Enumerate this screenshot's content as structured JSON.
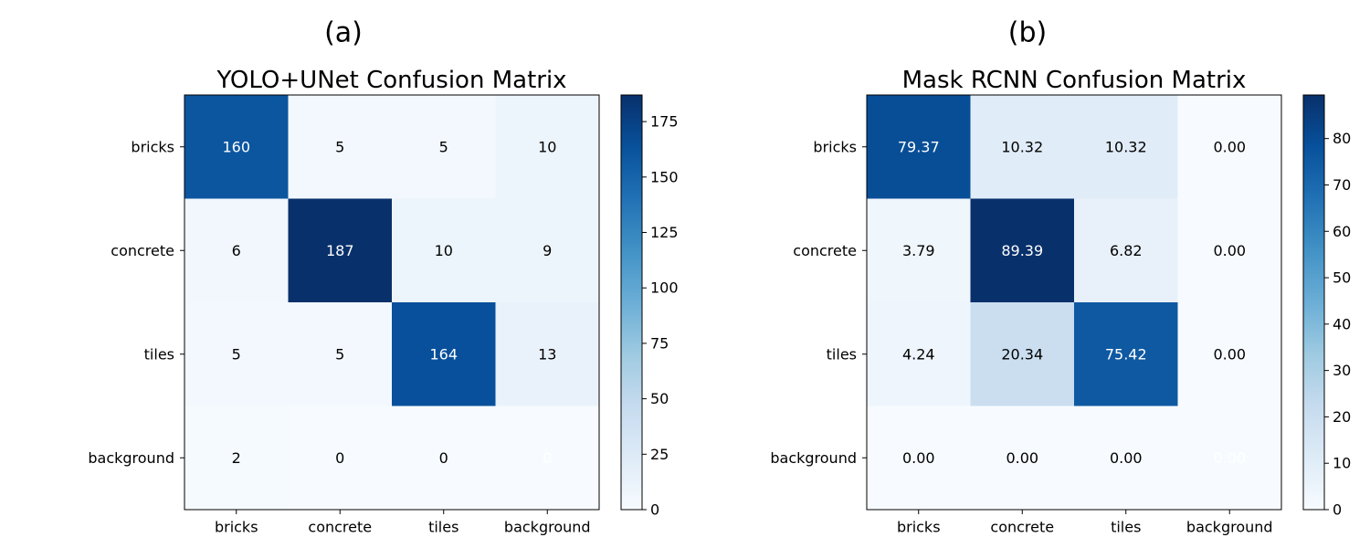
{
  "chart_data": [
    {
      "type": "heatmap",
      "panel_label": "(a)",
      "title": "YOLO+UNet Confusion Matrix",
      "rows": [
        "bricks",
        "concrete",
        "tiles",
        "background"
      ],
      "cols": [
        "bricks",
        "concrete",
        "tiles",
        "background"
      ],
      "values": [
        [
          160,
          5,
          5,
          10
        ],
        [
          6,
          187,
          10,
          9
        ],
        [
          5,
          5,
          164,
          13
        ],
        [
          2,
          0,
          0,
          0
        ]
      ],
      "labels": [
        [
          "160",
          "5",
          "5",
          "10"
        ],
        [
          "6",
          "187",
          "10",
          "9"
        ],
        [
          "5",
          "5",
          "164",
          "13"
        ],
        [
          "2",
          "0",
          "0",
          "0"
        ]
      ],
      "colorbar": {
        "min": 0,
        "max": 187,
        "ticks": [
          0,
          25,
          50,
          75,
          100,
          125,
          150,
          175
        ],
        "tick_labels": [
          "0",
          "25",
          "50",
          "75",
          "100",
          "125",
          "150",
          "175"
        ]
      },
      "colormap": "Blues"
    },
    {
      "type": "heatmap",
      "panel_label": "(b)",
      "title": "Mask RCNN Confusion Matrix",
      "rows": [
        "bricks",
        "concrete",
        "tiles",
        "background"
      ],
      "cols": [
        "bricks",
        "concrete",
        "tiles",
        "background"
      ],
      "values": [
        [
          79.37,
          10.32,
          10.32,
          0.0
        ],
        [
          3.79,
          89.39,
          6.82,
          0.0
        ],
        [
          4.24,
          20.34,
          75.42,
          0.0
        ],
        [
          0.0,
          0.0,
          0.0,
          0.0
        ]
      ],
      "labels": [
        [
          "79.37",
          "10.32",
          "10.32",
          "0.00"
        ],
        [
          "3.79",
          "89.39",
          "6.82",
          "0.00"
        ],
        [
          "4.24",
          "20.34",
          "75.42",
          "0.00"
        ],
        [
          "0.00",
          "0.00",
          "0.00",
          "0.00"
        ]
      ],
      "colorbar": {
        "min": 0,
        "max": 89.39,
        "ticks": [
          0,
          10,
          20,
          30,
          40,
          50,
          60,
          70,
          80
        ],
        "tick_labels": [
          "0",
          "10",
          "20",
          "30",
          "40",
          "50",
          "60",
          "70",
          "80"
        ]
      },
      "colormap": "Blues"
    }
  ]
}
